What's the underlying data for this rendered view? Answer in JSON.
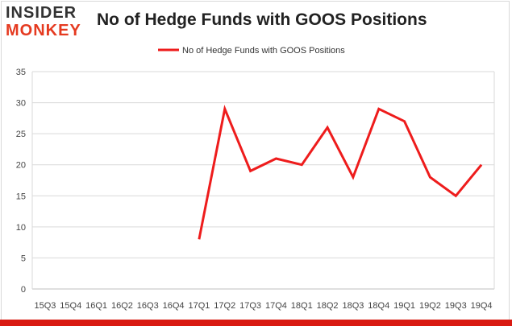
{
  "header": {
    "logo_top": "INSIDER",
    "logo_bottom": "MONKEY",
    "title": "No of Hedge Funds with GOOS Positions"
  },
  "colors": {
    "series_line": "#ee1c1c",
    "logo_red": "#e53a20",
    "bottom_bar": "#d91a12",
    "grid": "#d9d9d9"
  },
  "chart_data": {
    "type": "line",
    "title": "No of Hedge Funds with GOOS Positions",
    "xlabel": "",
    "ylabel": "",
    "categories": [
      "15Q3",
      "15Q4",
      "16Q1",
      "16Q2",
      "16Q3",
      "16Q4",
      "17Q1",
      "17Q2",
      "17Q3",
      "17Q4",
      "18Q1",
      "18Q2",
      "18Q3",
      "18Q4",
      "19Q1",
      "19Q2",
      "19Q3",
      "19Q4"
    ],
    "series": [
      {
        "name": "No of Hedge Funds with GOOS Positions",
        "values": [
          null,
          null,
          null,
          null,
          null,
          null,
          8,
          29,
          19,
          21,
          20,
          26,
          18,
          29,
          27,
          18,
          15,
          20
        ]
      }
    ],
    "ylim": [
      0,
      35
    ],
    "yticks": [
      0,
      5,
      10,
      15,
      20,
      25,
      30,
      35
    ],
    "grid": true,
    "legend": "top-center"
  }
}
